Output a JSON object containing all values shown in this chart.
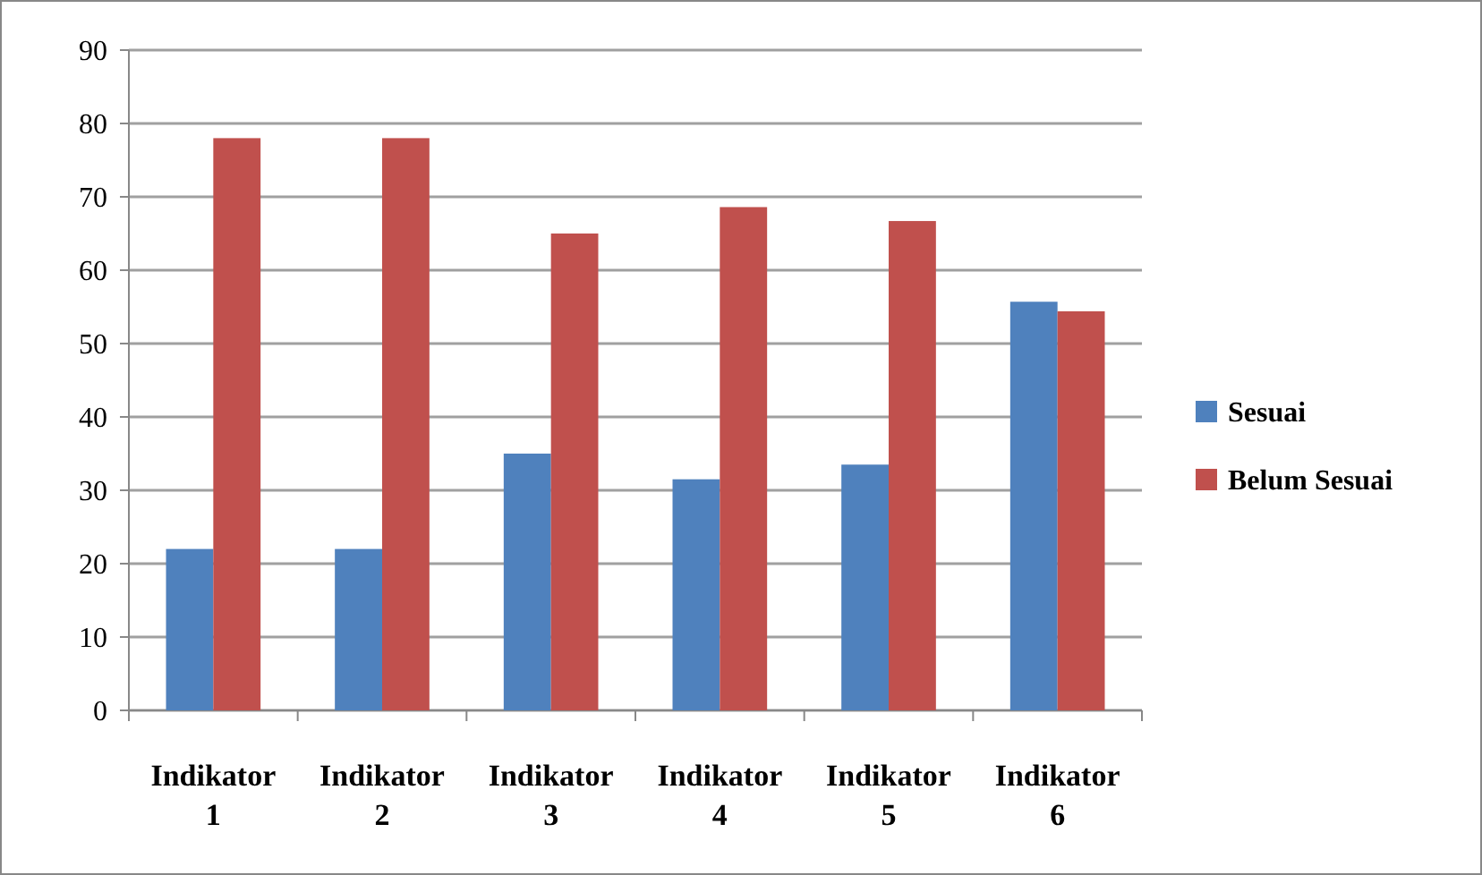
{
  "chart_data": {
    "type": "bar",
    "categories": [
      "Indikator 1",
      "Indikator 2",
      "Indikator 3",
      "Indikator 4",
      "Indikator 5",
      "Indikator 6"
    ],
    "series": [
      {
        "name": "Sesuai",
        "color": "#4f81bd",
        "values": [
          22,
          22,
          35,
          31.5,
          33.5,
          55.7
        ]
      },
      {
        "name": "Belum Sesuai",
        "color": "#c0504d",
        "values": [
          78,
          78,
          65,
          68.6,
          66.7,
          54.4
        ]
      }
    ],
    "ylim": [
      0,
      90
    ],
    "yticks": [
      0,
      10,
      20,
      30,
      40,
      50,
      60,
      70,
      80,
      90
    ],
    "grid": "y",
    "legend": "right"
  }
}
